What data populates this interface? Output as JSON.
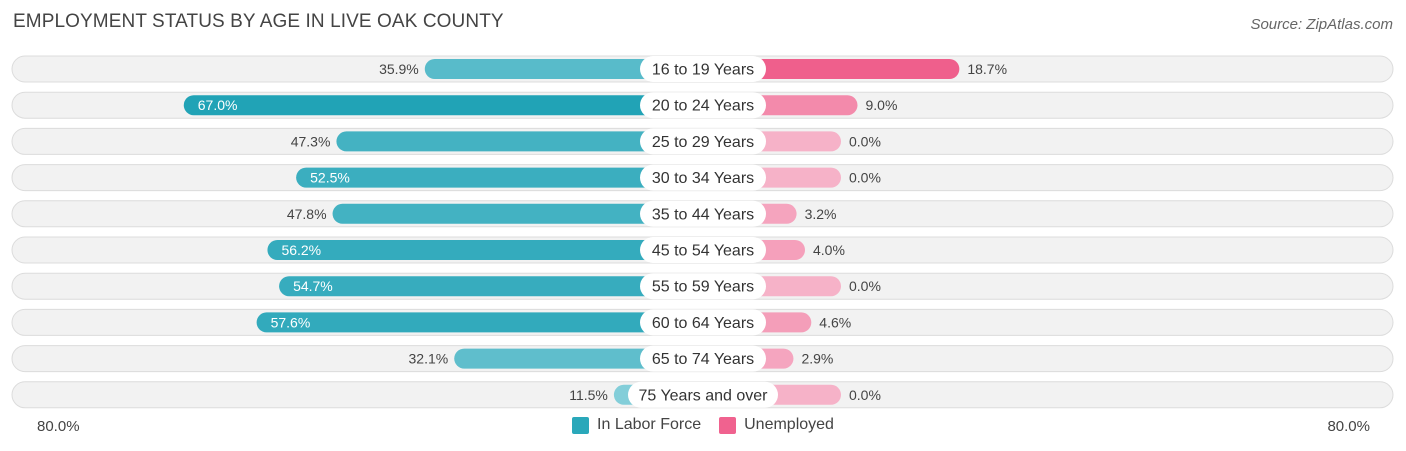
{
  "title": "EMPLOYMENT STATUS BY AGE IN LIVE OAK COUNTY",
  "source": "Source: ZipAtlas.com",
  "axis": {
    "left_label": "80.0%",
    "right_label": "80.0%"
  },
  "legend": [
    {
      "label": "In Labor Force",
      "color": "#2aa8ba"
    },
    {
      "label": "Unemployed",
      "color": "#f0628f"
    }
  ],
  "chart_data": {
    "type": "bar",
    "orientation": "horizontal-diverging",
    "title": "EMPLOYMENT STATUS BY AGE IN LIVE OAK COUNTY",
    "categories": [
      "16 to 19 Years",
      "20 to 24 Years",
      "25 to 29 Years",
      "30 to 34 Years",
      "35 to 44 Years",
      "45 to 54 Years",
      "55 to 59 Years",
      "60 to 64 Years",
      "65 to 74 Years",
      "75 Years and over"
    ],
    "xlim": [
      -80,
      80
    ],
    "series": [
      {
        "name": "In Labor Force",
        "values": [
          35.9,
          67.0,
          47.3,
          52.5,
          47.8,
          56.2,
          54.7,
          57.6,
          32.1,
          11.5
        ],
        "labels": [
          "35.9%",
          "67.0%",
          "47.3%",
          "52.5%",
          "47.8%",
          "56.2%",
          "54.7%",
          "57.6%",
          "32.1%",
          "11.5%"
        ]
      },
      {
        "name": "Unemployed",
        "values": [
          18.7,
          9.0,
          0.0,
          0.0,
          3.2,
          4.0,
          0.0,
          4.6,
          2.9,
          0.0
        ],
        "labels": [
          "18.7%",
          "9.0%",
          "0.0%",
          "0.0%",
          "3.2%",
          "4.0%",
          "0.0%",
          "4.6%",
          "2.9%",
          "0.0%"
        ]
      }
    ]
  }
}
